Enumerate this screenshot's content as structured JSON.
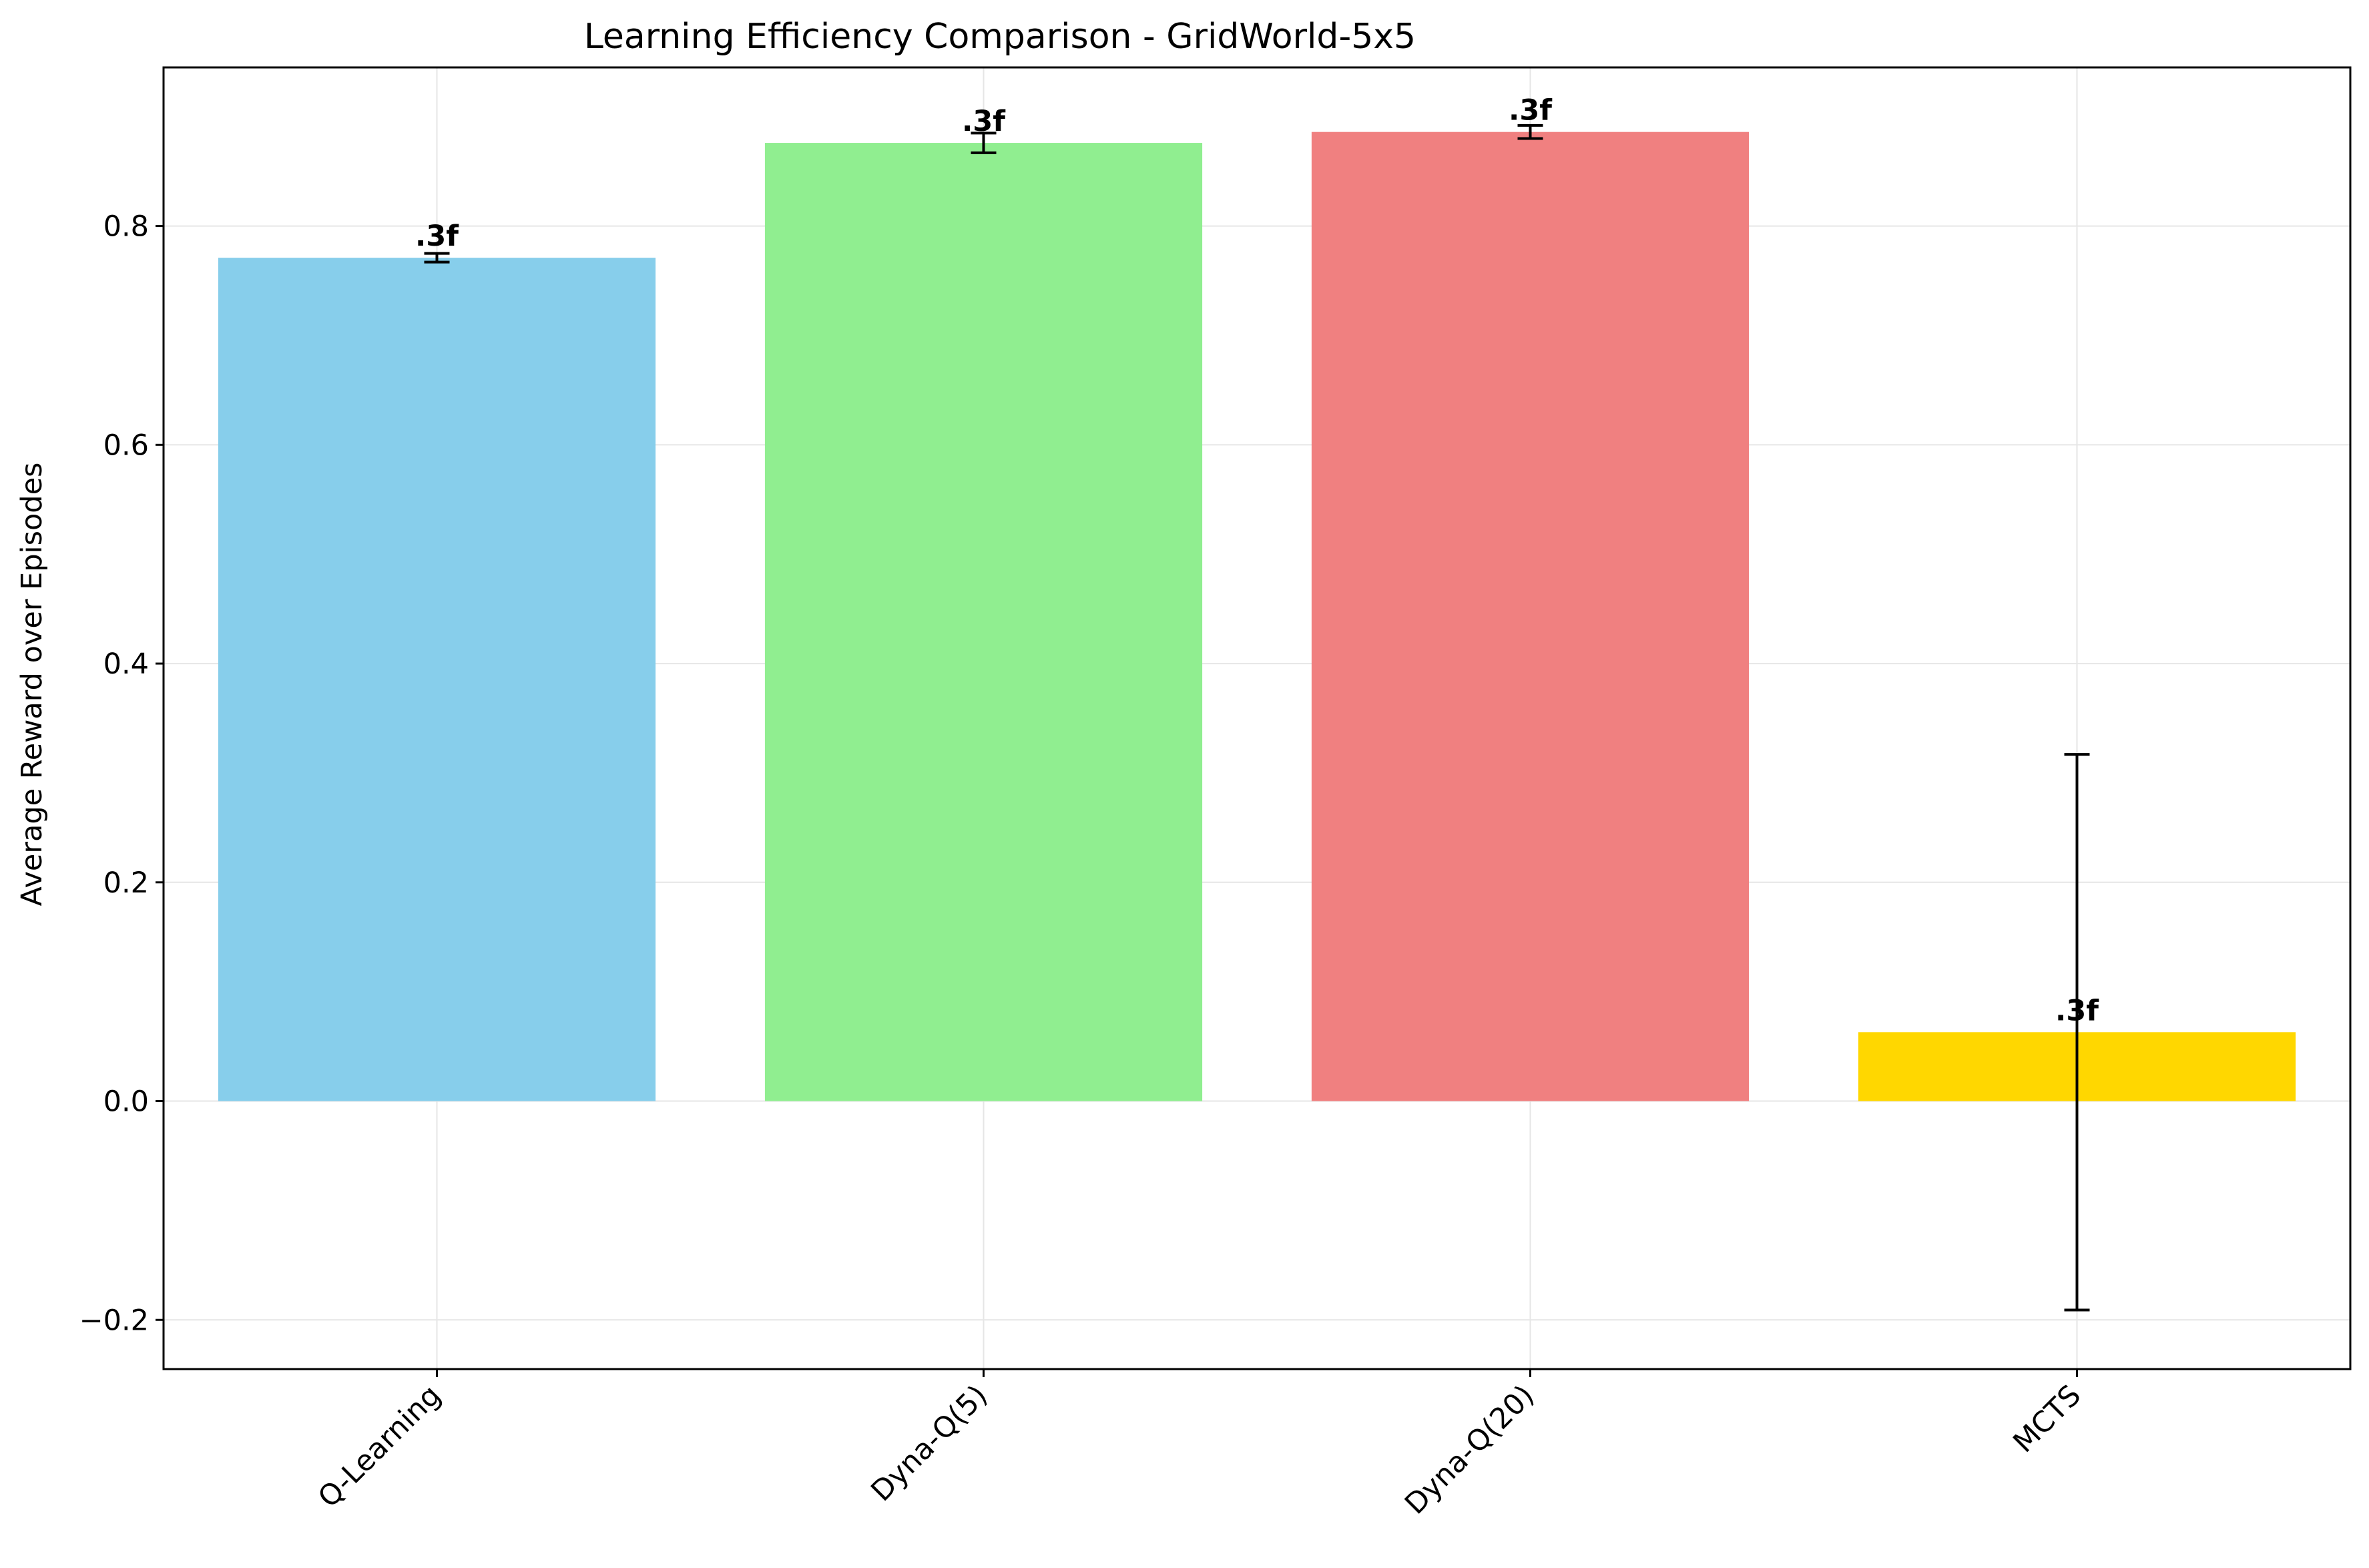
{
  "chart_data": {
    "type": "bar",
    "title": "Learning Efficiency Comparison - GridWorld-5x5",
    "xlabel": "",
    "ylabel": "Average Reward over Episodes",
    "categories": [
      "Q-Learning",
      "Dyna-Q(5)",
      "Dyna-Q(20)",
      "MCTS"
    ],
    "values": [
      0.771,
      0.876,
      0.886,
      0.063
    ],
    "errors": [
      0.004,
      0.009,
      0.006,
      0.254
    ],
    "colors": [
      "#87ceeb",
      "#90ee90",
      "#f08080",
      "#ffd700"
    ],
    "data_labels": [
      ".3f",
      ".3f",
      ".3f",
      ".3f"
    ],
    "ylim": [
      -0.245,
      0.945
    ],
    "yticks": [
      -0.2,
      0.0,
      0.2,
      0.4,
      0.6,
      0.8
    ],
    "ytick_labels": [
      "−0.2",
      "0.0",
      "0.2",
      "0.4",
      "0.6",
      "0.8"
    ],
    "grid": true,
    "legend": "none"
  }
}
